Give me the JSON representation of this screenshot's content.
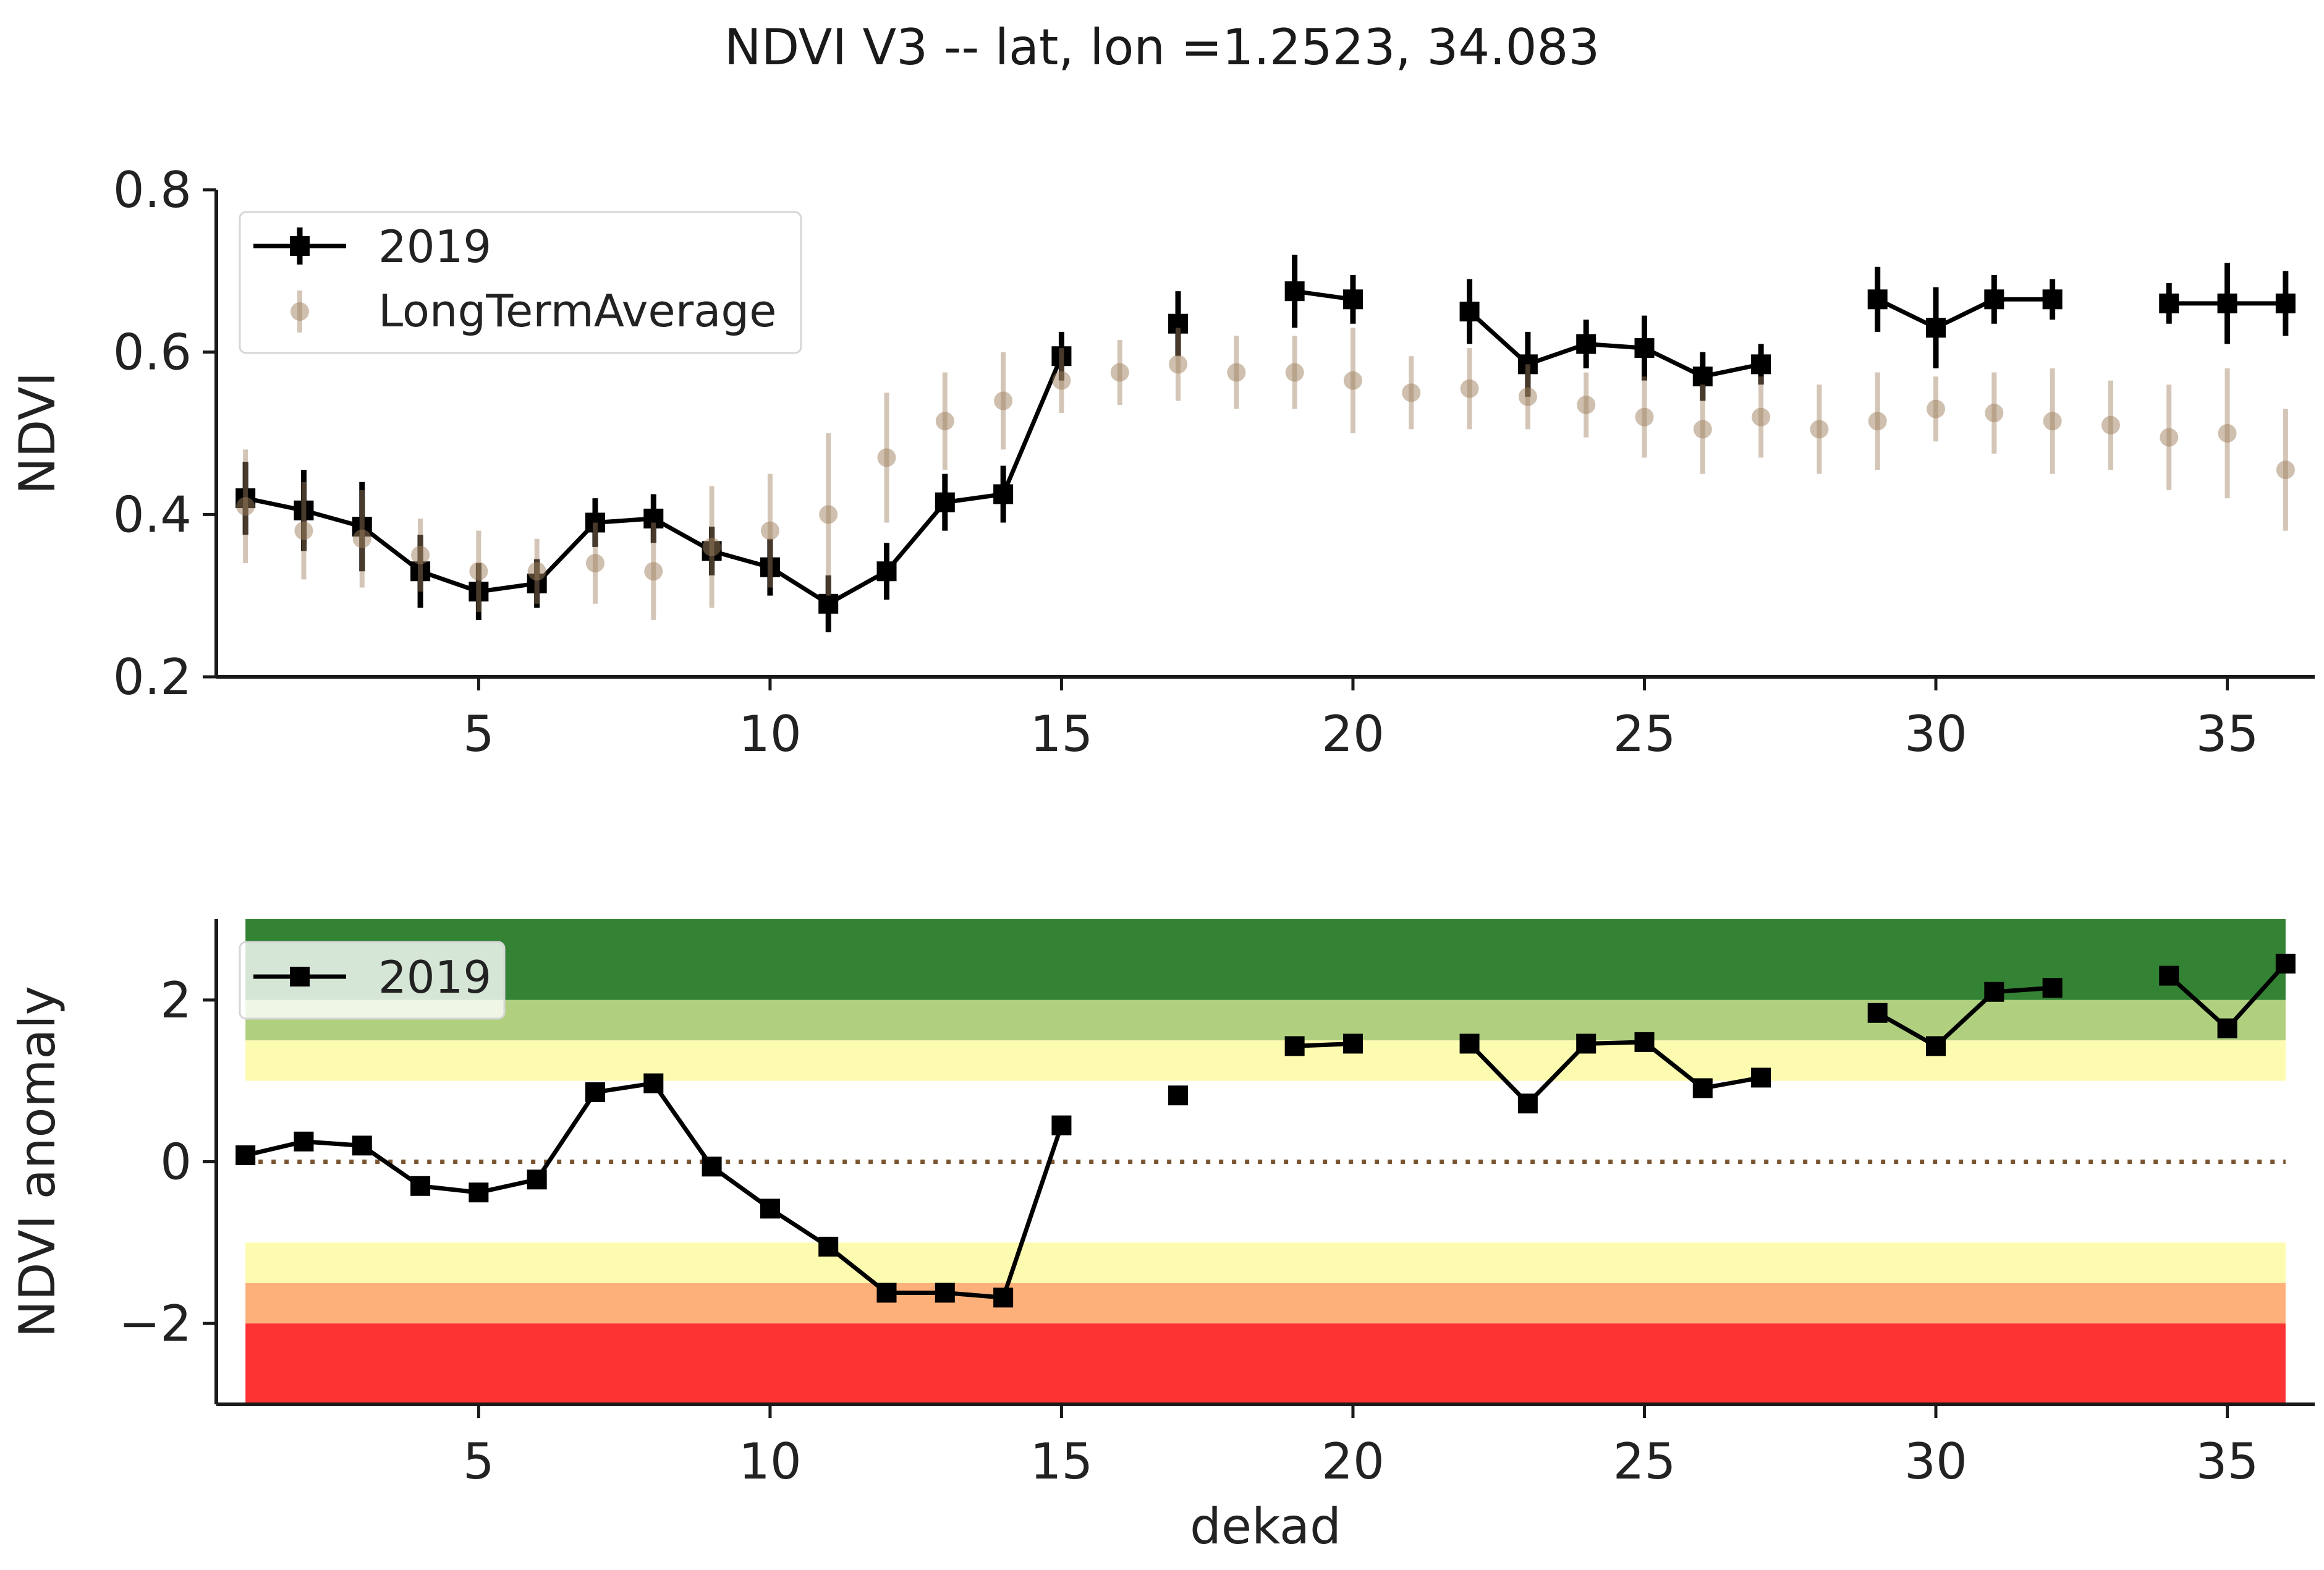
{
  "chart_data": [
    {
      "type": "line",
      "title": "NDVI V3 -- lat, lon =1.2523, 34.083",
      "xlabel": "",
      "ylabel": "NDVI",
      "xlim": [
        0.5,
        36.5
      ],
      "ylim": [
        0.2,
        0.8
      ],
      "xticks": [
        5,
        10,
        15,
        20,
        25,
        30,
        35
      ],
      "yticks": [
        "0.2",
        "0.4",
        "0.6",
        "0.8"
      ],
      "legend": "top-left",
      "grid": false,
      "series": [
        {
          "name": "2019",
          "style": "line-square-errorbar",
          "color": "#000000",
          "x": [
            1,
            2,
            3,
            4,
            5,
            6,
            7,
            8,
            9,
            10,
            11,
            12,
            13,
            14,
            15,
            16,
            17,
            18,
            19,
            20,
            21,
            22,
            23,
            24,
            25,
            26,
            27,
            28,
            29,
            30,
            31,
            32,
            33,
            34,
            35,
            36
          ],
          "y": [
            0.42,
            0.405,
            0.385,
            0.33,
            0.305,
            0.315,
            0.39,
            0.395,
            0.355,
            0.335,
            0.29,
            0.33,
            0.415,
            0.425,
            0.595,
            null,
            0.635,
            null,
            0.675,
            0.665,
            null,
            0.65,
            0.585,
            0.61,
            0.605,
            0.57,
            0.585,
            null,
            0.665,
            0.63,
            0.665,
            0.665,
            null,
            0.66,
            0.66,
            0.66
          ],
          "err": [
            0.045,
            0.05,
            0.055,
            0.045,
            0.035,
            0.03,
            0.03,
            0.03,
            0.03,
            0.035,
            0.035,
            0.035,
            0.035,
            0.035,
            0.03,
            null,
            0.04,
            null,
            0.045,
            0.03,
            null,
            0.04,
            0.04,
            0.03,
            0.04,
            0.03,
            0.025,
            null,
            0.04,
            0.05,
            0.03,
            0.025,
            null,
            0.025,
            0.05,
            0.04
          ]
        },
        {
          "name": "LongTermAverage",
          "style": "point-errorbar",
          "color": "#a08060",
          "x": [
            1,
            2,
            3,
            4,
            5,
            6,
            7,
            8,
            9,
            10,
            11,
            12,
            13,
            14,
            15,
            16,
            17,
            18,
            19,
            20,
            21,
            22,
            23,
            24,
            25,
            26,
            27,
            28,
            29,
            30,
            31,
            32,
            33,
            34,
            35,
            36
          ],
          "y": [
            0.41,
            0.38,
            0.37,
            0.35,
            0.33,
            0.33,
            0.34,
            0.33,
            0.36,
            0.38,
            0.4,
            0.47,
            0.515,
            0.54,
            0.565,
            0.575,
            0.585,
            0.575,
            0.575,
            0.565,
            0.55,
            0.555,
            0.545,
            0.535,
            0.52,
            0.505,
            0.52,
            0.505,
            0.515,
            0.53,
            0.525,
            0.515,
            0.51,
            0.495,
            0.5,
            0.455
          ],
          "err": [
            0.07,
            0.06,
            0.06,
            0.045,
            0.05,
            0.04,
            0.05,
            0.06,
            0.075,
            0.07,
            0.1,
            0.08,
            0.06,
            0.06,
            0.04,
            0.04,
            0.045,
            0.045,
            0.045,
            0.065,
            0.045,
            0.05,
            0.04,
            0.04,
            0.05,
            0.055,
            0.05,
            0.055,
            0.06,
            0.04,
            0.05,
            0.065,
            0.055,
            0.065,
            0.08,
            0.075
          ]
        }
      ]
    },
    {
      "type": "line",
      "title": "",
      "xlabel": "dekad",
      "ylabel": "NDVI anomaly",
      "xlim": [
        0.5,
        36.5
      ],
      "ylim": [
        -3,
        3
      ],
      "xticks": [
        5,
        10,
        15,
        20,
        25,
        30,
        35
      ],
      "yticks": [
        "−2",
        "0",
        "2"
      ],
      "legend": "top-left",
      "grid": false,
      "bands": [
        {
          "from": 2.0,
          "to": 3.0,
          "color": "#348234"
        },
        {
          "from": 1.5,
          "to": 2.0,
          "color": "#b0d080"
        },
        {
          "from": 1.0,
          "to": 1.5,
          "color": "#fdfbb0"
        },
        {
          "from": -1.5,
          "to": -1.0,
          "color": "#fdfbb0"
        },
        {
          "from": -2.0,
          "to": -1.5,
          "color": "#fdb07a"
        },
        {
          "from": -3.0,
          "to": -2.0,
          "color": "#fd3333"
        }
      ],
      "reference_line": {
        "y": 0,
        "style": "dotted",
        "color": "#7a5530"
      },
      "series": [
        {
          "name": "2019",
          "style": "line-square",
          "color": "#000000",
          "x": [
            1,
            2,
            3,
            4,
            5,
            6,
            7,
            8,
            9,
            10,
            11,
            12,
            13,
            14,
            15,
            16,
            17,
            18,
            19,
            20,
            21,
            22,
            23,
            24,
            25,
            26,
            27,
            28,
            29,
            30,
            31,
            32,
            33,
            34,
            35,
            36
          ],
          "y": [
            0.08,
            0.25,
            0.2,
            -0.3,
            -0.38,
            -0.22,
            0.86,
            0.97,
            -0.06,
            -0.58,
            -1.05,
            -1.62,
            -1.62,
            -1.68,
            0.45,
            null,
            0.82,
            null,
            1.43,
            1.46,
            null,
            1.46,
            0.72,
            1.46,
            1.48,
            0.91,
            1.04,
            null,
            1.84,
            1.43,
            2.1,
            2.15,
            null,
            2.3,
            1.65,
            2.45
          ]
        }
      ]
    }
  ]
}
